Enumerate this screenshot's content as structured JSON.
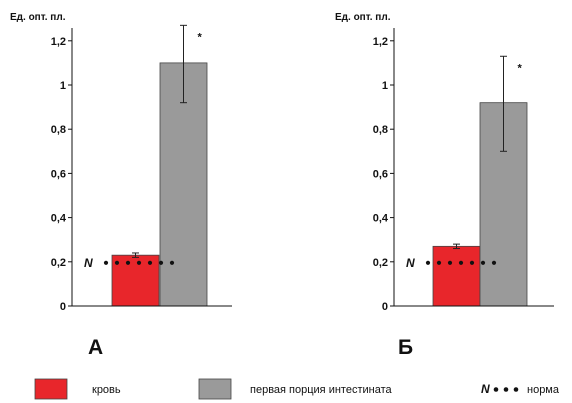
{
  "chart_data": [
    {
      "type": "bar",
      "panel": "А",
      "ylabel": "Ед. опт. пл.",
      "ylim": [
        0,
        1.3
      ],
      "yticks": [
        0,
        0.2,
        0.4,
        0.6,
        0.8,
        1,
        1.2
      ],
      "ytick_labels": [
        "0",
        "0,2",
        "0,4",
        "0,6",
        "0,8",
        "1",
        "1,2"
      ],
      "bars": [
        {
          "series": "кровь",
          "value": 0.23,
          "err_low": 0.22,
          "err_high": 0.24,
          "color": "#e8262b",
          "star": false
        },
        {
          "series": "первая порция интестината",
          "value": 1.1,
          "err_low": 0.92,
          "err_high": 1.27,
          "color": "#9a9a9a",
          "star": true
        }
      ],
      "norm": {
        "label": "N",
        "value": 0.2
      },
      "star_label": "*"
    },
    {
      "type": "bar",
      "panel": "Б",
      "ylabel": "Ед. опт. пл.",
      "ylim": [
        0,
        1.3
      ],
      "yticks": [
        0,
        0.2,
        0.4,
        0.6,
        0.8,
        1,
        1.2
      ],
      "ytick_labels": [
        "0",
        "0,2",
        "0,4",
        "0,6",
        "0,8",
        "1",
        "1,2"
      ],
      "bars": [
        {
          "series": "кровь",
          "value": 0.27,
          "err_low": 0.26,
          "err_high": 0.28,
          "color": "#e8262b",
          "star": false
        },
        {
          "series": "первая порция интестината",
          "value": 0.92,
          "err_low": 0.7,
          "err_high": 1.13,
          "color": "#9a9a9a",
          "star": true
        }
      ],
      "norm": {
        "label": "N",
        "value": 0.2
      },
      "star_label": "*"
    }
  ],
  "legend": {
    "items": [
      {
        "label": "кровь",
        "color": "#e8262b"
      },
      {
        "label": "первая порция интестината",
        "color": "#9a9a9a"
      }
    ],
    "norm_symbol": "N",
    "norm_label": "норма"
  },
  "colors": {
    "blood": "#e8262b",
    "intestinal": "#9a9a9a",
    "bar_stroke": "#444444",
    "axis": "#111111"
  }
}
